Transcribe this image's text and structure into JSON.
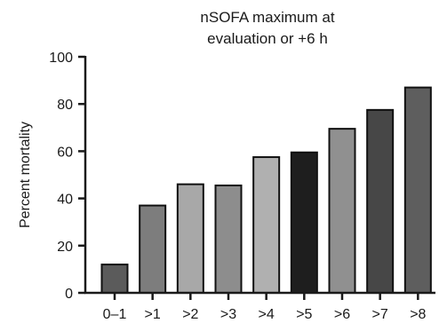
{
  "chart_data": {
    "type": "bar",
    "title": "nSOFA maximum at",
    "subtitle": "evaluation or +6 h",
    "xlabel": "",
    "ylabel": "Percent mortality",
    "ylim": [
      0,
      100
    ],
    "yticks": [
      0,
      20,
      40,
      60,
      80,
      100
    ],
    "grid": false,
    "categories": [
      "0–1",
      ">1",
      ">2",
      ">3",
      ">4",
      ">5",
      ">6",
      ">7",
      ">8"
    ],
    "values": [
      12,
      37,
      46,
      45.5,
      57.5,
      59.5,
      69.5,
      77.5,
      87
    ],
    "bar_colors": [
      "#5b5b5b",
      "#7d7d7d",
      "#a8a8a8",
      "#8d8d8d",
      "#b0b0b0",
      "#1e1e1e",
      "#909090",
      "#474747",
      "#5e5e5e"
    ]
  }
}
